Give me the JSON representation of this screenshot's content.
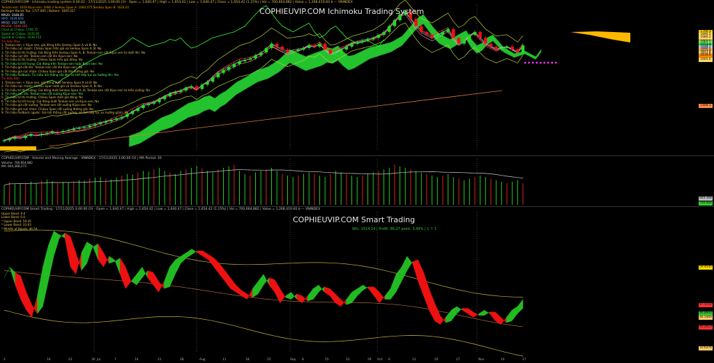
{
  "ichimoku": {
    "title": "COPHIEUVIP.COM Ichimoku Trading System",
    "header": "COPHIEUVIP.COM - Ichimoku trading system 6.00.02 - 17/11/2025 3:00:00 CH - Open = 1,640.47 | High = 1,654.42 | Low = 1,640.47 | Close = 1,654.42 (1.15%) | Vol = 700,664,882 | Value = 1,268,419.60 b — VNINDEX",
    "info_lines": [
      "Tenkan-sen: 1619    Kijun-sen: 1666.3   Senkou Span A: 1664.475   Senkou Span B: 1624.01",
      "Bollinger Bands Top: 1727.895 | Bottom: 1605.027",
      "MA20: 1648.05",
      "MA5: 1628.856",
      "MA50: 1627.845",
      "MA200: 1448.295",
      "Close at Chikou: 1766.72",
      "SpanA at Chikou: 1635.95",
      "SpanB at Chikou: 1636.155"
    ],
    "signal_header": "Tin hiệu Mua",
    "buy_signals": [
      "1. Tenkan-sen > Kijun-sen, giá đóng trên Senkou Span A và B: No",
      "2. Tín hiệu cực mạnh: Chikou Span trên giá và Senkou Span A, B: No",
      "3. Tín hiệu từ thị trường: Giá đóng trên Senkou Span A, B; Tenkan-sen cắt Kijun-sen từ dưới lên: No",
      "4. Tín hiệu cực lớn: Tenkan-sen cắt lên Kijun-sen: No",
      "5. Tín hiệu từ thị trường: Chikou Span trên giá đóng: No",
      "6. Tín hiệu từ trở trung: Giá đóng trên Tenkan-sen hoặc Kijun-sen: Yes",
      "7. Tín hiệu giá cắt lên: Tenkan-sen cắt lên Kijun-sen: No",
      "8. Tín hiệu giá cực nhận: Chikou Span giá cắt lên đường giá: No",
      "9. Tín hiệu Pullback: Tín hiệu hồi thẳng cắt lên, có thể tiếp tục xu hướng lên: Yes"
    ],
    "sell_header": "Tin hiệu Bán",
    "sell_signals": [
      "1. Tenkan-sen < Kijun-sen, giá đóng dưới Senkou Span A và B: No",
      "2. Tín hiệu cực mạnh: Chikou Span dưới giá và Senkou Span A, B: No",
      "3. Tín hiệu từ thị trường: Giá đóng dưới Senkou Span A, B; Tenkan-sen cắt Kijun-sen từ trên xuống: No",
      "4. Tín hiệu cực lớn: Tenkan-sen cắt xuống Kijun-sen: Yes",
      "5. Tín hiệu từ thị trường: Chikou Span dưới giá đóng: No",
      "6. Tín hiệu từ trở trung: Giá đóng dưới Tenkan-sen và Kijun-sen: No",
      "7. Tín hiệu giá cắt xuống: Tenkan-sen cắt xuống Kijun-sen: No",
      "8. Tín hiệu giá cực nhận: Chikou Span cắt xuống đường giá: No",
      "9. Tín hiệu Pullback ngược: Giá hồi thẳng cắt xuống, có thể tiếp tục xu hướng giảm: No"
    ],
    "price_tags": [
      {
        "v": 1700.3,
        "c": "#ffcc00"
      },
      {
        "v": 1690.5,
        "c": "#ffd966"
      },
      {
        "v": 1680.2,
        "c": "#ffd966"
      },
      {
        "v": 1666.3,
        "c": "#ff4444"
      },
      {
        "v": 1664.5,
        "c": "#66ff66"
      },
      {
        "v": 1654.4,
        "c": "#33cc33"
      },
      {
        "v": 1648.1,
        "c": "#aaccff"
      },
      {
        "v": 1640.5,
        "c": "#ffaaaa"
      },
      {
        "v": 1635.9,
        "c": "#ffaa55"
      },
      {
        "v": 1627.8,
        "c": "#dddd66"
      },
      {
        "v": 1624.0,
        "c": "#ffcc66"
      },
      {
        "v": 1619.0,
        "c": "#ff8800"
      },
      {
        "v": 1605.0,
        "c": "#ffd966"
      },
      {
        "v": 1448.3,
        "c": "#ff8844"
      }
    ]
  },
  "volume": {
    "header": "COPHIEUVIP.COM - Volume and Moving Average - VNINDEX - 17/11/2025 3:00:00 CH | MA Period: 20",
    "volume_line": "Volume: 700,664,882",
    "ma_line": "MA: 844,368,273",
    "tags": [
      "844.368",
      "700.664"
    ]
  },
  "smart": {
    "title": "COPHIEUVIP.COM Smart Trading",
    "header": "COPHIEUVIP.COM Smart Trading - 17/11/2025 3:00:00 CH - Open = 1,640.47 | High = 1,654.42 | Low = 1,640.47 | Close = 1,654.42 (1.15%) | Vol = 700,664,882 | Value = 1,268,419.60 b — VNINDEX",
    "info_lines": [
      "Upper Band: 0.0",
      "Lower Band: 0.0",
      "* Upper Band: 59.45",
      "* Lower Band: 33.63",
      "* Middle of Bands: 46.54"
    ],
    "performance": "Win: 1514.14 | Profit: 66.27 point: 3.49% | 1 ↑ 1",
    "tags": [
      {
        "v": "59.4545",
        "c": "#ffdd00"
      },
      {
        "v": "47.5152",
        "c": "#ff3333"
      },
      {
        "v": "46.8943",
        "c": "#33cc33"
      },
      {
        "v": "46.5469",
        "c": "#ffcc66"
      },
      {
        "v": "45.2012",
        "c": "#ff3333"
      },
      {
        "v": "33.6376",
        "c": "#ffcc66"
      }
    ]
  },
  "axis": {
    "labels": [
      "2",
      "16",
      "23",
      "30",
      "Jul",
      "7",
      "14",
      "21",
      "28",
      "Aug",
      "11",
      "18",
      "25",
      "Sep",
      "8",
      "15",
      "22",
      "29",
      "Oct",
      "6",
      "13",
      "20",
      "27",
      "Nov",
      "10",
      "17"
    ]
  },
  "chart_data": [
    {
      "type": "candlestick",
      "title": "COPHIEUVIP.COM Ichimoku Trading System",
      "x_start": "2025-06-02",
      "x_end": "2025-11-17",
      "ylim": [
        1300,
        1790
      ],
      "close": [
        1330,
        1335,
        1340,
        1338,
        1345,
        1350,
        1348,
        1352,
        1355,
        1360,
        1358,
        1362,
        1365,
        1370,
        1372,
        1375,
        1380,
        1385,
        1390,
        1395,
        1400,
        1405,
        1410,
        1420,
        1430,
        1440,
        1450,
        1455,
        1460,
        1470,
        1480,
        1490,
        1495,
        1500,
        1510,
        1515,
        1505,
        1520,
        1530,
        1545,
        1560,
        1570,
        1580,
        1590,
        1600,
        1605,
        1610,
        1620,
        1630,
        1645,
        1660,
        1650,
        1640,
        1630,
        1635,
        1640,
        1645,
        1655,
        1650,
        1660,
        1640,
        1625,
        1630,
        1640,
        1650,
        1660,
        1665,
        1670,
        1675,
        1680,
        1690,
        1700,
        1720,
        1740,
        1760,
        1770,
        1745,
        1720,
        1700,
        1690,
        1680,
        1690,
        1700,
        1710,
        1680,
        1660,
        1670,
        1690,
        1700,
        1680,
        1660,
        1650,
        1640,
        1645,
        1650,
        1640,
        1630,
        1654
      ]
    },
    {
      "type": "bar",
      "title": "Volume and Moving Average",
      "values": [
        640,
        720,
        690,
        700,
        680,
        750,
        700,
        780,
        820,
        760,
        700,
        740,
        730,
        760,
        800,
        780,
        850,
        880,
        900,
        850,
        820,
        880,
        950,
        1000,
        980,
        1050,
        1100,
        1080,
        1150,
        1200,
        1100,
        1050,
        1000,
        1100,
        1150,
        1200,
        1250,
        1180,
        1100,
        1050,
        1150,
        1200,
        1250,
        1300,
        1100,
        1000,
        950,
        1050,
        1100,
        1150,
        1200,
        1100,
        1000,
        950,
        900,
        950,
        1000,
        1050,
        1000,
        950,
        900,
        1000,
        1100,
        1050,
        1000,
        950,
        900,
        950,
        1000,
        1050,
        1100,
        1150,
        1200,
        1300,
        1250,
        1200,
        1150,
        1100,
        1050,
        1000,
        950,
        900,
        950,
        1000,
        900,
        850,
        800,
        850,
        900,
        950,
        900,
        850,
        800,
        750,
        700,
        750,
        800,
        700
      ],
      "ma": [
        844.4
      ]
    },
    {
      "type": "area",
      "title": "COPHIEUVIP.COM Smart Trading",
      "ylim": [
        28,
        66
      ],
      "oscillator": [
        49,
        52,
        47,
        43,
        40,
        38,
        44,
        52,
        58,
        62,
        61,
        60,
        52,
        50,
        56,
        59,
        58,
        54,
        52,
        55,
        54,
        50,
        46,
        48,
        50,
        52,
        49,
        47,
        45,
        48,
        52,
        54,
        55,
        56,
        57,
        56,
        55,
        54,
        52,
        50,
        48,
        46,
        45,
        44,
        43,
        46,
        48,
        50,
        47,
        45,
        42,
        44,
        45,
        43,
        42,
        44,
        46,
        47,
        45,
        44,
        42,
        41,
        43,
        45,
        46,
        47,
        46,
        44,
        42,
        44,
        46,
        50,
        52,
        55,
        53,
        48,
        44,
        40,
        37,
        36,
        38,
        40,
        41,
        40,
        39,
        38,
        39,
        40,
        39,
        37,
        36,
        38,
        40,
        41,
        43
      ]
    }
  ]
}
